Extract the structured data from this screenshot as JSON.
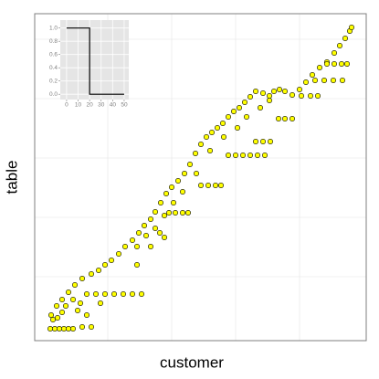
{
  "chart_data": [
    {
      "type": "scatter",
      "x_label": "customer",
      "y_label": "table",
      "xlim": [
        0,
        363
      ],
      "ylim": [
        0,
        358
      ],
      "xticks": [
        80,
        150,
        220,
        290
      ],
      "yticks": [
        70,
        135,
        200,
        265,
        330
      ],
      "grid": true,
      "x": [
        24,
        30,
        37,
        44,
        52,
        62,
        70,
        77,
        84,
        92,
        99,
        107,
        114,
        120,
        127,
        132,
        138,
        144,
        150,
        157,
        164,
        170,
        176,
        182,
        188,
        194,
        200,
        206,
        212,
        218,
        224,
        230,
        236,
        242,
        250,
        257,
        262,
        268,
        274,
        282,
        290,
        297,
        304,
        312,
        320,
        328,
        334,
        340,
        345,
        347,
        112,
        122,
        132,
        142,
        152,
        162,
        177,
        192,
        207,
        222,
        232,
        247,
        257,
        57,
        67,
        77,
        87,
        97,
        107,
        117,
        147,
        154,
        162,
        168,
        182,
        190,
        198,
        204,
        212,
        220,
        228,
        236,
        244,
        252,
        242,
        250,
        258,
        267,
        274,
        282,
        292,
        302,
        310,
        307,
        317,
        327,
        337,
        320,
        328,
        336,
        342,
        17,
        22,
        27,
        32,
        37,
        42,
        52,
        62,
        20,
        25,
        30,
        18,
        34,
        47,
        57,
        42,
        50,
        72,
        112,
        127,
        142,
        137
      ],
      "series": [
        {
          "name": "table",
          "color": "#ffff00",
          "values": [
            38,
            45,
            53,
            61,
            68,
            73,
            77,
            83,
            88,
            95,
            103,
            110,
            118,
            126,
            133,
            141,
            151,
            161,
            168,
            175,
            183,
            193,
            205,
            215,
            223,
            228,
            233,
            238,
            245,
            251,
            255,
            261,
            267,
            273,
            271,
            268,
            273,
            275,
            273,
            269,
            275,
            283,
            291,
            299,
            305,
            315,
            323,
            331,
            339,
            343,
            103,
            115,
            123,
            137,
            151,
            163,
            183,
            208,
            223,
            233,
            245,
            255,
            263,
            51,
            51,
            51,
            51,
            51,
            51,
            51,
            140,
            140,
            140,
            140,
            170,
            170,
            170,
            170,
            203,
            203,
            203,
            203,
            203,
            203,
            218,
            218,
            218,
            243,
            243,
            243,
            268,
            268,
            268,
            285,
            285,
            285,
            285,
            303,
            303,
            303,
            303,
            13,
            13,
            13,
            13,
            13,
            13,
            15,
            15,
            23,
            25,
            31,
            28,
            38,
            33,
            28,
            45,
            41,
            41,
            83,
            103,
            113,
            118
          ]
        }
      ]
    },
    {
      "type": "line",
      "xlim": [
        -5.5,
        54
      ],
      "ylim": [
        -0.08,
        1.12
      ],
      "grid": true,
      "xticks": [
        0,
        10,
        20,
        30,
        40,
        50
      ],
      "yticks": [
        {
          "value": 0,
          "label": "0.0"
        },
        {
          "value": 0.2,
          "label": "0.2"
        },
        {
          "value": 0.4,
          "label": "0.4"
        },
        {
          "value": 0.6,
          "label": "0.6"
        },
        {
          "value": 0.8,
          "label": "0.8"
        },
        {
          "value": 1,
          "label": "1.0"
        }
      ],
      "x": [
        0,
        20,
        20,
        50
      ],
      "series": [
        {
          "name": "step",
          "color": "#000000",
          "values": [
            1,
            1,
            0,
            0
          ]
        }
      ]
    }
  ]
}
